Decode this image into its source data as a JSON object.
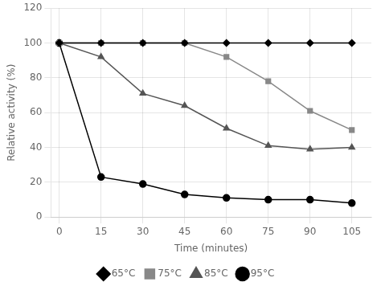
{
  "chart_data": {
    "type": "line",
    "x": [
      0,
      15,
      30,
      45,
      60,
      75,
      90,
      105
    ],
    "series": [
      {
        "name": "65°C",
        "color": "#000000",
        "marker": "diamond",
        "values": [
          100,
          100,
          100,
          100,
          100,
          100,
          100,
          100
        ]
      },
      {
        "name": "75°C",
        "color": "#888888",
        "marker": "square",
        "values": [
          100,
          100,
          100,
          100,
          92,
          78,
          61,
          50
        ]
      },
      {
        "name": "85°C",
        "color": "#555555",
        "marker": "triangle",
        "values": [
          100,
          92,
          71,
          64,
          51,
          41,
          39,
          40
        ]
      },
      {
        "name": "95°C",
        "color": "#000000",
        "marker": "circle",
        "values": [
          100,
          23,
          19,
          13,
          11,
          10,
          10,
          8
        ]
      }
    ],
    "xlabel": "Time (minutes)",
    "ylabel": "Relative activity (%)",
    "xlim": [
      -3,
      112
    ],
    "xticks": [
      0,
      15,
      30,
      45,
      60,
      75,
      90,
      105
    ],
    "ylim": [
      0,
      120
    ],
    "yticks": [
      0,
      20,
      40,
      60,
      80,
      100,
      120
    ],
    "grid": true,
    "legend": "bottom"
  }
}
